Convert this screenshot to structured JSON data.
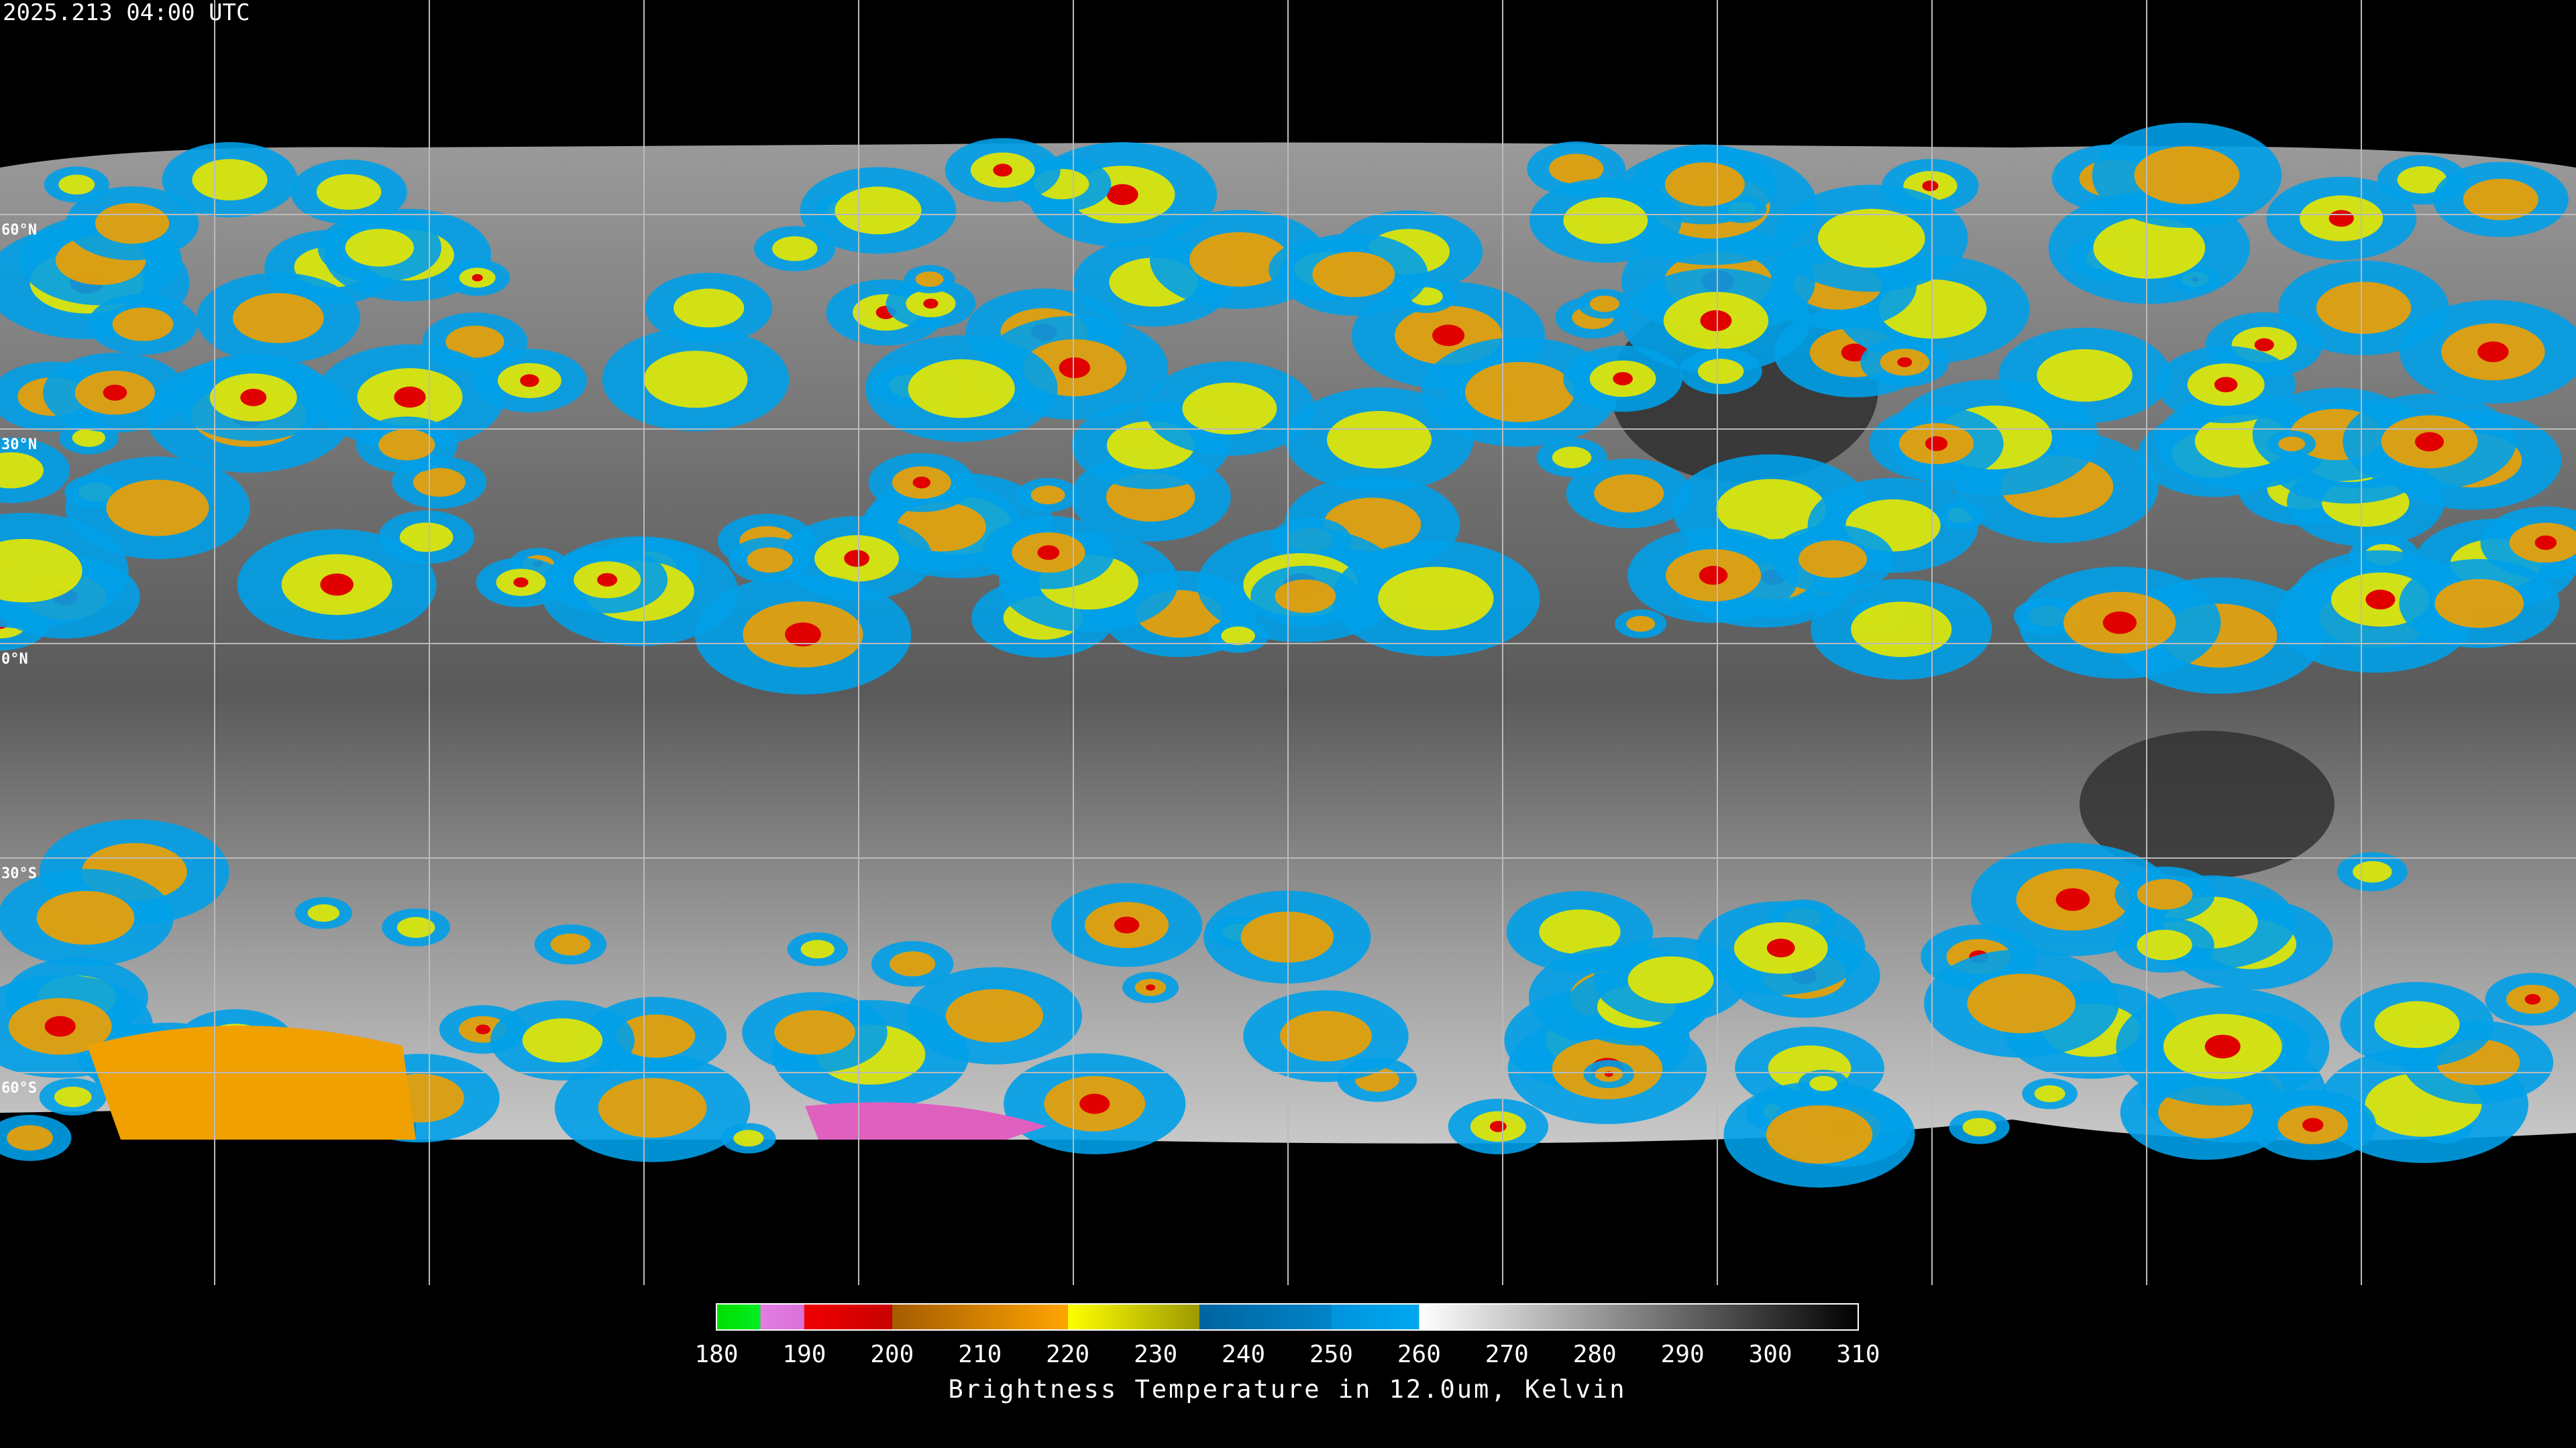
{
  "title": "2025.213 04:00 UTC",
  "latitude_labels": [
    {
      "value": 60,
      "label": "60°N"
    },
    {
      "value": 30,
      "label": "30°N"
    },
    {
      "value": 0,
      "label": "0°N"
    },
    {
      "value": -30,
      "label": "30°S"
    },
    {
      "value": -60,
      "label": "60°S"
    }
  ],
  "colorbar": {
    "range": [
      180,
      310
    ],
    "ticks": [
      180,
      190,
      200,
      210,
      220,
      230,
      240,
      250,
      260,
      270,
      280,
      290,
      300,
      310
    ],
    "label": "Brightness Temperature in 12.0um, Kelvin",
    "segments": [
      {
        "from": 180,
        "to": 185,
        "color_start": "#00dd00",
        "color_end": "#00ee20"
      },
      {
        "from": 185,
        "to": 190,
        "color_start": "#e27ee2",
        "color_end": "#d870d8"
      },
      {
        "from": 190,
        "to": 200,
        "color_start": "#f00000",
        "color_end": "#c80000"
      },
      {
        "from": 200,
        "to": 220,
        "color_start": "#a45c00",
        "color_end": "#ffa400"
      },
      {
        "from": 220,
        "to": 235,
        "color_start": "#ffff00",
        "color_end": "#9c9a00"
      },
      {
        "from": 235,
        "to": 250,
        "color_start": "#0064a0",
        "color_end": "#0084c8"
      },
      {
        "from": 250,
        "to": 260,
        "color_start": "#0094dc",
        "color_end": "#00a8f0"
      },
      {
        "from": 260,
        "to": 310,
        "color_start": "#ffffff",
        "color_end": "#000000"
      }
    ]
  }
}
